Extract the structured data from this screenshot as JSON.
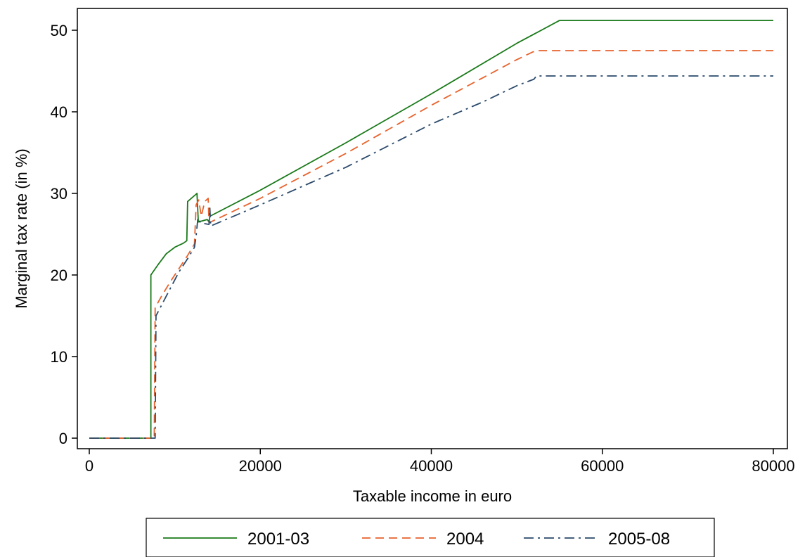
{
  "chart_data": {
    "type": "line",
    "xlabel": "Taxable income in euro",
    "ylabel": "Marginal tax rate (in %)",
    "xlim": [
      -2000,
      81000
    ],
    "ylim": [
      -2,
      52
    ],
    "xticks": [
      0,
      20000,
      40000,
      60000,
      80000
    ],
    "yticks": [
      0,
      10,
      20,
      30,
      40,
      50
    ],
    "grid": false,
    "legend_position": "bottom",
    "series": [
      {
        "name": "2001-03",
        "color": "#1a7a1a",
        "dash": "solid",
        "points": [
          [
            0,
            0
          ],
          [
            7200,
            0
          ],
          [
            7200,
            20.0
          ],
          [
            8000,
            21.2
          ],
          [
            9000,
            22.6
          ],
          [
            10000,
            23.4
          ],
          [
            11000,
            23.9
          ],
          [
            11400,
            24.2
          ],
          [
            11500,
            29.0
          ],
          [
            12600,
            30.0
          ],
          [
            12750,
            26.5
          ],
          [
            13800,
            26.8
          ],
          [
            14000,
            26.5
          ],
          [
            14100,
            27.2
          ],
          [
            20000,
            30.4
          ],
          [
            30000,
            36.2
          ],
          [
            40000,
            42.2
          ],
          [
            50000,
            48.4
          ],
          [
            55000,
            51.2
          ],
          [
            80000,
            51.2
          ]
        ]
      },
      {
        "name": "2004",
        "color": "#e8622c",
        "dash": "dashed",
        "points": [
          [
            0,
            0
          ],
          [
            7600,
            0
          ],
          [
            7700,
            16.0
          ],
          [
            8500,
            17.5
          ],
          [
            9500,
            19.2
          ],
          [
            10500,
            20.8
          ],
          [
            11500,
            22.4
          ],
          [
            12300,
            23.8
          ],
          [
            12500,
            28.6
          ],
          [
            12800,
            29.2
          ],
          [
            13100,
            27.2
          ],
          [
            13500,
            29.0
          ],
          [
            13900,
            29.4
          ],
          [
            14000,
            26.4
          ],
          [
            20000,
            29.4
          ],
          [
            30000,
            34.9
          ],
          [
            40000,
            40.8
          ],
          [
            50000,
            46.4
          ],
          [
            52200,
            47.5
          ],
          [
            80000,
            47.5
          ]
        ]
      },
      {
        "name": "2005-08",
        "color": "#2b4a6b",
        "dash": "dashdot",
        "points": [
          [
            0,
            0
          ],
          [
            7700,
            0
          ],
          [
            7800,
            15.0
          ],
          [
            8500,
            16.4
          ],
          [
            9500,
            18.4
          ],
          [
            10500,
            20.4
          ],
          [
            11500,
            22.0
          ],
          [
            12300,
            23.4
          ],
          [
            12500,
            24.8
          ],
          [
            12700,
            27.0
          ],
          [
            13000,
            26.4
          ],
          [
            14000,
            26.2
          ],
          [
            14100,
            28.2
          ],
          [
            14200,
            26.0
          ],
          [
            20000,
            28.6
          ],
          [
            30000,
            33.2
          ],
          [
            40000,
            38.5
          ],
          [
            46000,
            41.2
          ],
          [
            50000,
            43.2
          ],
          [
            52000,
            44.0
          ],
          [
            52300,
            44.4
          ],
          [
            80000,
            44.4
          ]
        ]
      }
    ]
  }
}
